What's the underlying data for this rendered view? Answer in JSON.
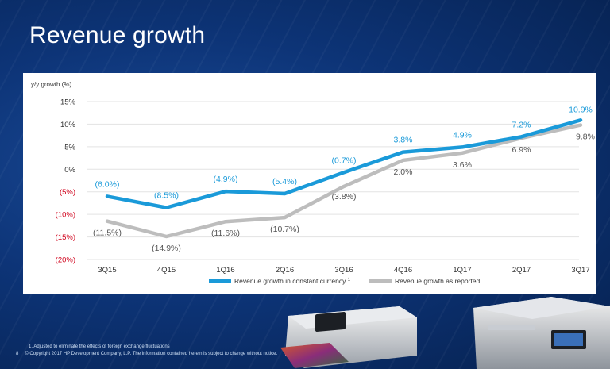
{
  "slide": {
    "title": "Revenue growth",
    "page_number": "8",
    "footnote": "1.  Adjusted to eliminate the effects of foreign exchange fluctuations",
    "copyright": "© Copyright 2017 HP Development Company, L.P. The information contained herein is subject to change without notice."
  },
  "colors": {
    "background": "#0d3477",
    "constant_currency": "#1a9ad9",
    "as_reported": "#bdbdbd",
    "negative_tick": "#d0021b",
    "label_gray": "#555555"
  },
  "chart_data": {
    "type": "line",
    "ylabel": "y/y growth (%)",
    "categories": [
      "3Q15",
      "4Q15",
      "1Q16",
      "2Q16",
      "3Q16",
      "4Q16",
      "1Q17",
      "2Q17",
      "3Q17"
    ],
    "ylim": [
      -20,
      15
    ],
    "yticks": [
      15,
      10,
      5,
      0,
      -5,
      -10,
      -15,
      -20
    ],
    "ytick_labels": [
      "15%",
      "10%",
      "5%",
      "0%",
      "(5%)",
      "(10%)",
      "(15%)",
      "(20%)"
    ],
    "grid": true,
    "legend_placement": "bottom",
    "series": [
      {
        "name": "Revenue growth in constant currency",
        "name_sup": "1",
        "values": [
          -6.0,
          -8.5,
          -4.9,
          -5.4,
          -0.7,
          3.8,
          4.9,
          7.2,
          10.9
        ],
        "labels": [
          "(6.0%)",
          "(8.5%)",
          "(4.9%)",
          "(5.4%)",
          "(0.7%)",
          "3.8%",
          "4.9%",
          "7.2%",
          "10.9%"
        ]
      },
      {
        "name": "Revenue growth as reported",
        "values": [
          -11.5,
          -14.9,
          -11.6,
          -10.7,
          -3.8,
          2.0,
          3.6,
          6.9,
          9.8
        ],
        "labels": [
          "(11.5%)",
          "(14.9%)",
          "(11.6%)",
          "(10.7%)",
          "(3.8%)",
          "2.0%",
          "3.6%",
          "6.9%",
          "9.8%"
        ]
      }
    ]
  }
}
